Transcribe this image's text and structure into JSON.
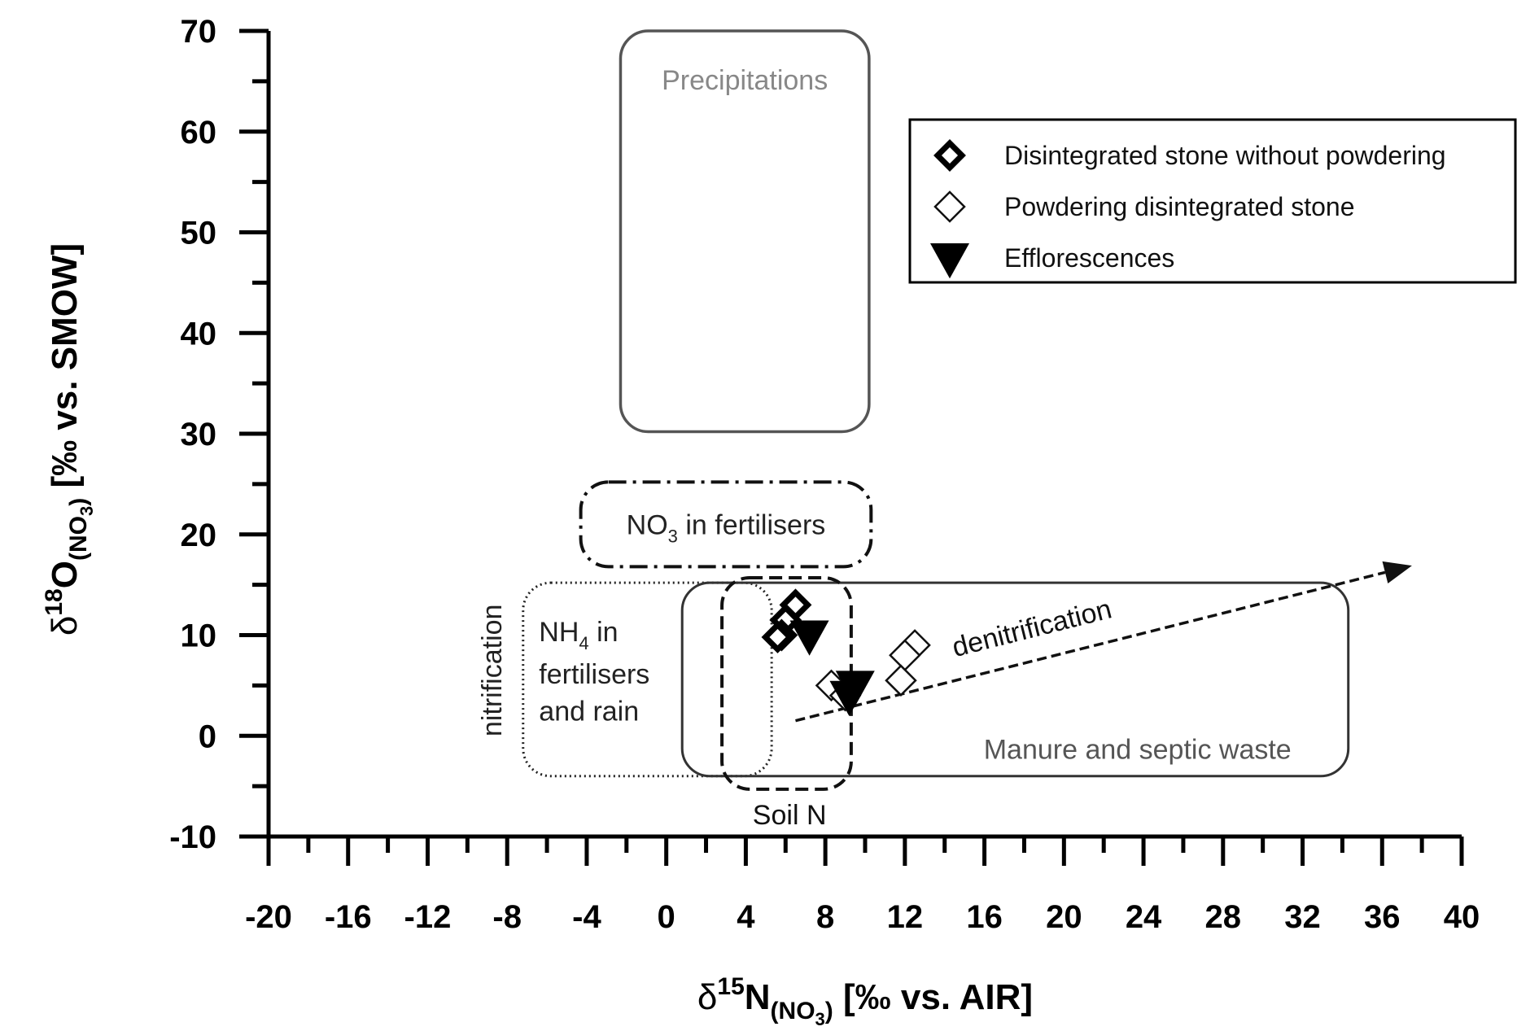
{
  "chart_data": {
    "type": "scatter",
    "title": "",
    "xlabel": "δ15N(NO3) [‰ vs. AIR]",
    "ylabel": "δ18O(NO3) [‰ vs. SMOW]",
    "xlabel_parts": {
      "delta": "δ",
      "sup": "15",
      "main": "N",
      "sub": "(NO",
      "sub2": "3",
      "sub3": ")",
      "rest": " [‰ vs. AIR]"
    },
    "ylabel_parts": {
      "delta": "δ",
      "sup": "18",
      "main": "O",
      "sub": "(NO",
      "sub2": "3",
      "sub3": ")",
      "rest": " [‰ vs. SMOW]"
    },
    "xlim": [
      -20,
      40
    ],
    "ylim": [
      -10,
      70
    ],
    "x_ticks": [
      "-20",
      "-16",
      "-12",
      "-8",
      "-4",
      "0",
      "4",
      "8",
      "12",
      "16",
      "20",
      "24",
      "28",
      "32",
      "36",
      "40"
    ],
    "y_ticks": [
      "-10",
      "0",
      "10",
      "20",
      "30",
      "40",
      "50",
      "60",
      "70"
    ],
    "grid": false,
    "legend_position": "top-right",
    "series": [
      {
        "name": "Disintegrated stone without powdering",
        "marker": "diamond-bold",
        "points": [
          [
            6.5,
            13.0
          ],
          [
            6.0,
            11.5
          ],
          [
            5.8,
            10.0
          ],
          [
            5.6,
            9.8
          ]
        ]
      },
      {
        "name": "Powdering disintegrated stone",
        "marker": "diamond-open",
        "points": [
          [
            12.5,
            9.0
          ],
          [
            12.0,
            8.0
          ],
          [
            11.8,
            5.5
          ],
          [
            8.3,
            5.0
          ],
          [
            9.0,
            4.0
          ]
        ]
      },
      {
        "name": "Efflorescences",
        "marker": "triangle-down",
        "points": [
          [
            7.2,
            10.0
          ],
          [
            9.5,
            5.0
          ],
          [
            9.2,
            4.0
          ]
        ]
      }
    ],
    "regions": [
      {
        "label": "Precipitations",
        "x0": -2.3,
        "x1": 10.2,
        "y0": 30.2,
        "y1": 70,
        "style": "solid-grey"
      },
      {
        "label_main": "NO",
        "label_sub": "3",
        "label_rest": " in fertilisers",
        "x0": -4.3,
        "x1": 10.3,
        "y0": 16.8,
        "y1": 25.2,
        "style": "dash-dot"
      },
      {
        "label_line1": "NH",
        "label_sub": "4",
        "label_line1_rest": " in",
        "label_line2": "fertilisers",
        "label_line3": "and rain",
        "x0": -7.2,
        "x1": 5.3,
        "y0": -4.0,
        "y1": 15.2,
        "style": "dotted"
      },
      {
        "label": "Manure and septic waste",
        "x0": 0.8,
        "x1": 34.3,
        "y0": -4.0,
        "y1": 15.2,
        "style": "solid"
      },
      {
        "label": "Soil N",
        "x0": 2.8,
        "x1": 9.3,
        "y0": -5.3,
        "y1": 15.7,
        "style": "dashed"
      }
    ],
    "annotations": {
      "nitrification": "nitrification",
      "denitrification": "denitrification",
      "denitrification_arrow": {
        "from": [
          6.5,
          1.5
        ],
        "to": [
          37.5,
          16.9
        ]
      }
    }
  }
}
